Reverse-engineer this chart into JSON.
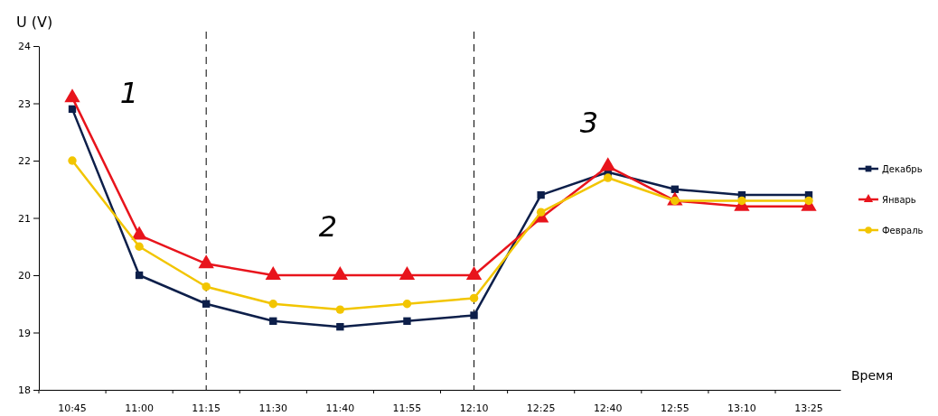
{
  "chart_data": {
    "type": "line",
    "ylabel": "U (V)",
    "xlabel": "Время",
    "categories": [
      "10:45",
      "11:00",
      "11:15",
      "11:30",
      "11:40",
      "11:55",
      "12:10",
      "12:25",
      "12:40",
      "12:55",
      "13:10",
      "13:25"
    ],
    "series": [
      {
        "name": "Декабрь",
        "color": "#0d1f4a",
        "marker": "square",
        "values": [
          22.9,
          20.0,
          19.5,
          19.2,
          19.1,
          19.2,
          19.3,
          21.4,
          21.8,
          21.5,
          21.4,
          21.4
        ]
      },
      {
        "name": "Январь",
        "color": "#e8141c",
        "marker": "triangle",
        "values": [
          23.1,
          20.7,
          20.2,
          20.0,
          20.0,
          20.0,
          20.0,
          21.0,
          21.9,
          21.3,
          21.2,
          21.2
        ]
      },
      {
        "name": "Февраль",
        "color": "#f2c500",
        "marker": "circle",
        "values": [
          22.0,
          20.5,
          19.8,
          19.5,
          19.4,
          19.5,
          19.6,
          21.1,
          21.7,
          21.3,
          21.3,
          21.3
        ]
      }
    ],
    "ylim": [
      18,
      24
    ],
    "yticks": [
      18,
      19,
      20,
      21,
      22,
      23,
      24
    ],
    "grid": false,
    "legend": "right",
    "line_style": "solid",
    "ref_lines": [
      {
        "axis": "x",
        "value": "11:15",
        "color": "#000000",
        "line_style": "dashed"
      },
      {
        "axis": "x",
        "value": "12:10",
        "color": "#000000",
        "line_style": "dashed"
      }
    ],
    "annotations": [
      "1",
      "2",
      "3"
    ]
  }
}
